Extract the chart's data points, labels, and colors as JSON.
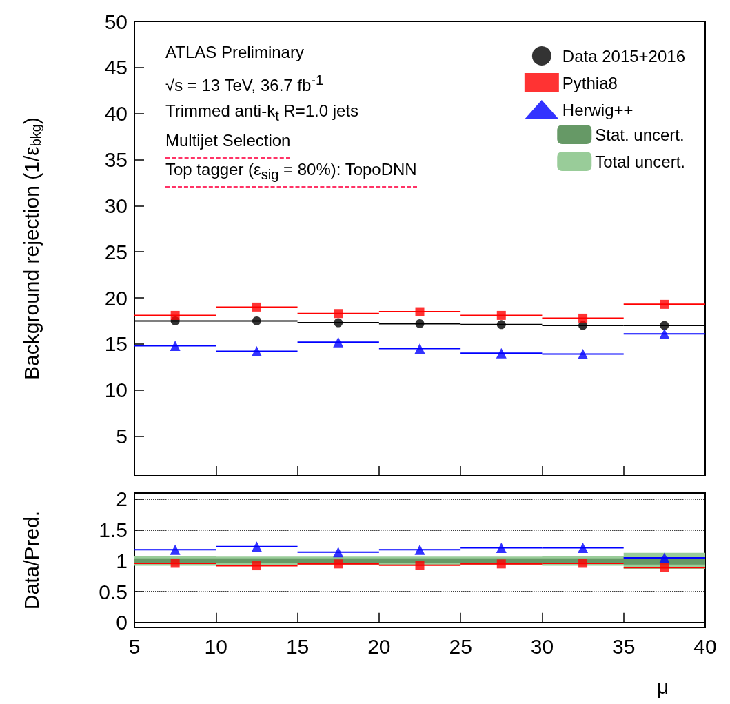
{
  "chart_data": [
    {
      "type": "scatter",
      "ylabel": "Background rejection (1/ε$_{bkg}$)",
      "xlim": [
        5,
        40
      ],
      "xticks": [
        5,
        10,
        15,
        20,
        25,
        30,
        35,
        40
      ],
      "ylim": [
        0.7,
        50
      ],
      "yticks": [
        5,
        10,
        15,
        20,
        25,
        30,
        35,
        40,
        45,
        50
      ],
      "tick_labels": "y",
      "grid": false,
      "legend": "top right",
      "annotations": [
        "ATLAS Preliminary",
        "√s = 13 TeV, 36.7 fb$^{-1}$",
        "Trimmed anti-k$_{t}$ R=1.0 jets",
        "Multijet Selection",
        "Top tagger (ε$_{sig}$ = 80%): TopoDNN"
      ],
      "x": [
        7.5,
        12.5,
        17.5,
        22.5,
        27.5,
        32.5,
        37.5
      ],
      "series": [
        {
          "name": "Data 2015+2016",
          "color": "#000000",
          "marker": "circle",
          "values": [
            17.5,
            17.5,
            17.3,
            17.2,
            17.1,
            17.0,
            17.0
          ],
          "xerrors": [
            2.5,
            2.5,
            2.5,
            2.5,
            2.5,
            2.5,
            2.5
          ]
        },
        {
          "name": "Pythia8",
          "color": "#ff0000",
          "marker": "square",
          "values": [
            18.1,
            19.0,
            18.3,
            18.5,
            18.1,
            17.8,
            19.3
          ],
          "xerrors": [
            2.5,
            2.5,
            2.5,
            2.5,
            2.5,
            2.5,
            2.5
          ]
        },
        {
          "name": "Herwig++",
          "color": "#0000ff",
          "marker": "triangle",
          "values": [
            14.8,
            14.2,
            15.2,
            14.5,
            14.0,
            13.9,
            16.1
          ],
          "xerrors": [
            2.5,
            2.5,
            2.5,
            2.5,
            2.5,
            2.5,
            2.5
          ]
        }
      ]
    },
    {
      "type": "scatter",
      "xlabel": "μ",
      "ylabel": "Data/Pred.",
      "xlim": [
        5,
        40
      ],
      "xticks": [
        5,
        10,
        15,
        20,
        25,
        30,
        35,
        40
      ],
      "ylim": [
        -0.08,
        2.1
      ],
      "yticks": [
        0,
        0.5,
        1,
        1.5,
        2
      ],
      "grid": "y",
      "legend": "top right",
      "x": [
        7.5,
        12.5,
        17.5,
        22.5,
        27.5,
        32.5,
        37.5
      ],
      "series": [
        {
          "name": "Stat. uncert.",
          "type": "line",
          "color": "#669966",
          "x": [
            5,
            10,
            10,
            15,
            15,
            20,
            20,
            25,
            25,
            30,
            30,
            35,
            35,
            40
          ],
          "values": [
            1,
            1,
            1,
            1,
            1,
            1,
            1,
            1,
            1,
            1,
            1,
            1,
            1,
            1
          ],
          "lower": [
            0.96,
            0.96,
            0.96,
            0.96,
            0.96,
            0.96,
            0.96,
            0.96,
            0.96,
            0.96,
            0.96,
            0.96,
            0.94,
            0.94
          ],
          "upper": [
            1.04,
            1.04,
            1.04,
            1.04,
            1.04,
            1.04,
            1.04,
            1.04,
            1.04,
            1.04,
            1.04,
            1.04,
            1.06,
            1.06
          ]
        },
        {
          "name": "Total uncert.",
          "type": "line",
          "color": "#99cc99",
          "x": [
            5,
            10,
            10,
            15,
            15,
            20,
            20,
            25,
            25,
            30,
            30,
            35,
            35,
            40
          ],
          "values": [
            null,
            null,
            null,
            null,
            null,
            null,
            null,
            null,
            null,
            null,
            null,
            null,
            null,
            null
          ],
          "lower": [
            0.92,
            0.92,
            0.93,
            0.93,
            0.93,
            0.93,
            0.93,
            0.93,
            0.93,
            0.93,
            0.92,
            0.92,
            0.87,
            0.87
          ],
          "upper": [
            1.08,
            1.08,
            1.07,
            1.07,
            1.07,
            1.07,
            1.07,
            1.07,
            1.07,
            1.07,
            1.08,
            1.08,
            1.13,
            1.13
          ]
        },
        {
          "color": "#ff0000",
          "marker": "square",
          "values": [
            0.96,
            0.92,
            0.95,
            0.93,
            0.95,
            0.96,
            0.89
          ],
          "xerrors": [
            2.5,
            2.5,
            2.5,
            2.5,
            2.5,
            2.5,
            2.5
          ]
        },
        {
          "color": "#0000ff",
          "marker": "triangle",
          "values": [
            1.18,
            1.23,
            1.14,
            1.18,
            1.21,
            1.21,
            1.05
          ],
          "xerrors": [
            2.5,
            2.5,
            2.5,
            2.5,
            2.5,
            2.5,
            2.5
          ]
        }
      ]
    }
  ]
}
